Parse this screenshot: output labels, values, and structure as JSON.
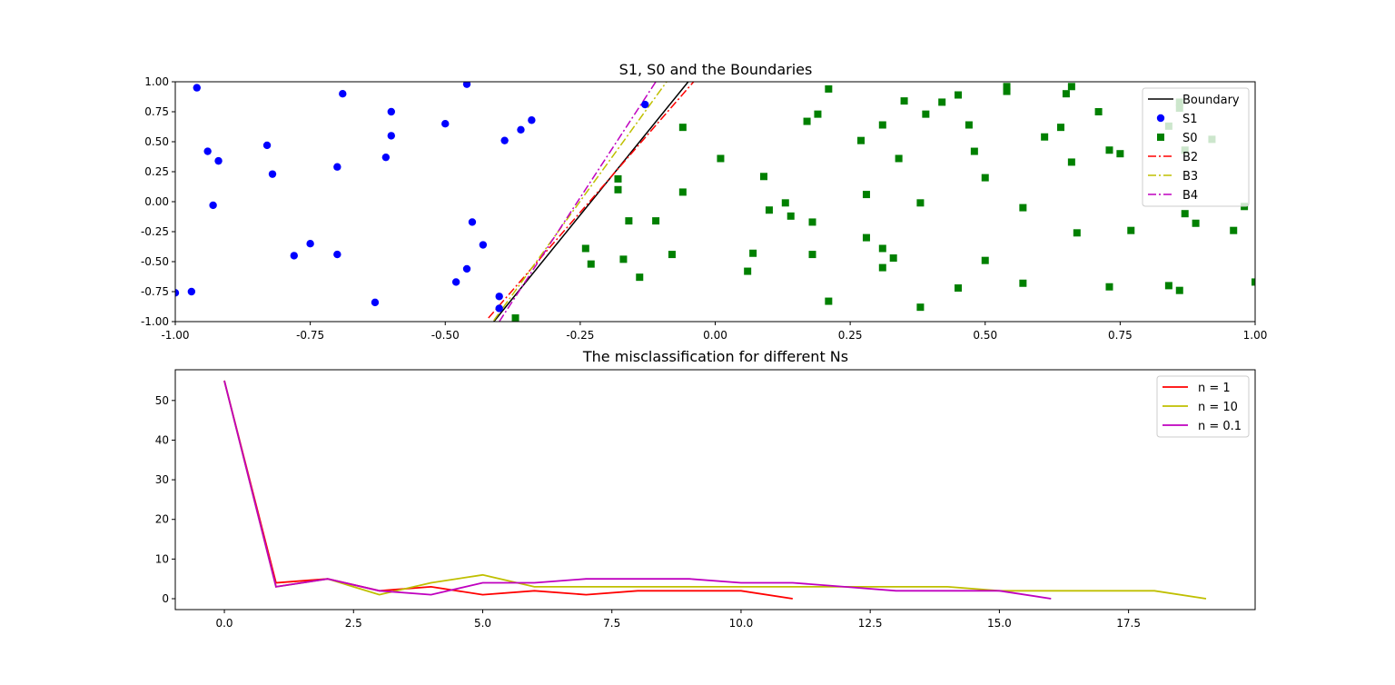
{
  "chart_data": [
    {
      "type": "scatter",
      "title": "S1, S0 and the Boundaries",
      "xlim": [
        -1.0,
        1.0
      ],
      "ylim": [
        -1.0,
        1.0
      ],
      "xticks": [
        "-1.00",
        "-0.75",
        "-0.50",
        "-0.25",
        "0.00",
        "0.25",
        "0.50",
        "0.75",
        "1.00"
      ],
      "yticks": [
        "-1.00",
        "-0.75",
        "-0.50",
        "-0.25",
        "0.00",
        "0.25",
        "0.50",
        "0.75",
        "1.00"
      ],
      "grid": false,
      "legend_position": "top-right",
      "scatter_series": [
        {
          "name": "S1",
          "color": "#0000ff",
          "marker": "circle",
          "points": [
            [
              -0.96,
              0.95
            ],
            [
              -0.69,
              0.9
            ],
            [
              -0.46,
              0.98
            ],
            [
              -0.13,
              0.81
            ],
            [
              -0.6,
              0.75
            ],
            [
              -0.34,
              0.68
            ],
            [
              -0.5,
              0.65
            ],
            [
              -0.36,
              0.6
            ],
            [
              -0.6,
              0.55
            ],
            [
              -0.39,
              0.51
            ],
            [
              -0.83,
              0.47
            ],
            [
              -0.94,
              0.42
            ],
            [
              -0.61,
              0.37
            ],
            [
              -0.92,
              0.34
            ],
            [
              -0.7,
              0.29
            ],
            [
              -0.82,
              0.23
            ],
            [
              -0.93,
              -0.03
            ],
            [
              -0.45,
              -0.17
            ],
            [
              -0.75,
              -0.35
            ],
            [
              -0.43,
              -0.36
            ],
            [
              -0.78,
              -0.45
            ],
            [
              -0.7,
              -0.44
            ],
            [
              -0.46,
              -0.56
            ],
            [
              -0.48,
              -0.67
            ],
            [
              -0.97,
              -0.75
            ],
            [
              -1.0,
              -0.76
            ],
            [
              -0.4,
              -0.79
            ],
            [
              -0.63,
              -0.84
            ],
            [
              -0.4,
              -0.89
            ]
          ]
        },
        {
          "name": "S0",
          "color": "#008000",
          "marker": "square",
          "points": [
            [
              0.21,
              0.94
            ],
            [
              0.54,
              0.96
            ],
            [
              0.66,
              0.96
            ],
            [
              0.54,
              0.92
            ],
            [
              0.45,
              0.89
            ],
            [
              0.65,
              0.9
            ],
            [
              0.35,
              0.84
            ],
            [
              0.42,
              0.83
            ],
            [
              0.86,
              0.83
            ],
            [
              0.86,
              0.78
            ],
            [
              0.19,
              0.73
            ],
            [
              0.39,
              0.73
            ],
            [
              0.71,
              0.75
            ],
            [
              0.17,
              0.67
            ],
            [
              0.31,
              0.64
            ],
            [
              0.47,
              0.64
            ],
            [
              0.84,
              0.63
            ],
            [
              -0.06,
              0.62
            ],
            [
              0.64,
              0.62
            ],
            [
              0.61,
              0.54
            ],
            [
              0.92,
              0.52
            ],
            [
              0.27,
              0.51
            ],
            [
              0.87,
              0.43
            ],
            [
              0.73,
              0.43
            ],
            [
              0.75,
              0.4
            ],
            [
              0.48,
              0.42
            ],
            [
              0.34,
              0.36
            ],
            [
              0.01,
              0.36
            ],
            [
              0.66,
              0.33
            ],
            [
              0.09,
              0.21
            ],
            [
              0.5,
              0.2
            ],
            [
              -0.18,
              0.19
            ],
            [
              -0.18,
              0.1
            ],
            [
              -0.06,
              0.08
            ],
            [
              0.28,
              0.06
            ],
            [
              0.13,
              -0.01
            ],
            [
              0.38,
              -0.01
            ],
            [
              0.98,
              -0.04
            ],
            [
              0.1,
              -0.07
            ],
            [
              0.57,
              -0.05
            ],
            [
              0.14,
              -0.12
            ],
            [
              0.87,
              -0.1
            ],
            [
              -0.16,
              -0.16
            ],
            [
              -0.11,
              -0.16
            ],
            [
              0.18,
              -0.17
            ],
            [
              0.89,
              -0.18
            ],
            [
              0.96,
              -0.24
            ],
            [
              0.77,
              -0.24
            ],
            [
              0.67,
              -0.26
            ],
            [
              0.28,
              -0.3
            ],
            [
              0.31,
              -0.39
            ],
            [
              -0.24,
              -0.39
            ],
            [
              0.07,
              -0.43
            ],
            [
              -0.08,
              -0.44
            ],
            [
              0.18,
              -0.44
            ],
            [
              0.33,
              -0.47
            ],
            [
              -0.17,
              -0.48
            ],
            [
              0.5,
              -0.49
            ],
            [
              -0.23,
              -0.52
            ],
            [
              0.31,
              -0.55
            ],
            [
              0.06,
              -0.58
            ],
            [
              -0.14,
              -0.63
            ],
            [
              0.57,
              -0.68
            ],
            [
              1.0,
              -0.67
            ],
            [
              0.84,
              -0.7
            ],
            [
              0.73,
              -0.71
            ],
            [
              0.45,
              -0.72
            ],
            [
              0.86,
              -0.74
            ],
            [
              0.21,
              -0.83
            ],
            [
              0.38,
              -0.88
            ],
            [
              -0.37,
              -0.97
            ]
          ]
        }
      ],
      "line_series": [
        {
          "name": "Boundary",
          "color": "#000000",
          "dash": "solid",
          "points": [
            [
              -0.41,
              -1.0
            ],
            [
              -0.05,
              1.0
            ]
          ]
        },
        {
          "name": "B2",
          "color": "#ff0000",
          "dash": "dashdot",
          "points": [
            [
              -0.42,
              -0.97
            ],
            [
              -0.04,
              1.0
            ]
          ]
        },
        {
          "name": "B3",
          "color": "#bfbf00",
          "dash": "dashdot",
          "points": [
            [
              -0.41,
              -0.99
            ],
            [
              -0.09,
              1.0
            ]
          ]
        },
        {
          "name": "B4",
          "color": "#bf00bf",
          "dash": "dashdot",
          "points": [
            [
              -0.4,
              -1.0
            ],
            [
              -0.11,
              1.0
            ]
          ]
        }
      ],
      "legend": [
        "Boundary",
        "S1",
        "S0",
        "B2",
        "B3",
        "B4"
      ]
    },
    {
      "type": "line",
      "title": "The misclassification for different Ns",
      "xlim": [
        -0.95,
        19.95
      ],
      "ylim": [
        -2.75,
        57.75
      ],
      "xticks": [
        "0.0",
        "2.5",
        "5.0",
        "7.5",
        "10.0",
        "12.5",
        "15.0",
        "17.5"
      ],
      "yticks": [
        "0",
        "10",
        "20",
        "30",
        "40",
        "50"
      ],
      "grid": false,
      "legend_position": "top-right",
      "series": [
        {
          "name": "n = 1",
          "color": "#ff0000",
          "x": [
            0,
            1,
            2,
            3,
            4,
            5,
            6,
            7,
            8,
            9,
            10,
            11
          ],
          "values": [
            55,
            4,
            5,
            2,
            3,
            1,
            2,
            1,
            2,
            2,
            2,
            0
          ]
        },
        {
          "name": "n = 10",
          "color": "#bfbf00",
          "x": [
            0,
            1,
            2,
            3,
            4,
            5,
            6,
            7,
            8,
            9,
            10,
            11,
            12,
            13,
            14,
            15,
            16,
            17,
            18,
            19
          ],
          "values": [
            55,
            3,
            5,
            1,
            4,
            6,
            3,
            3,
            3,
            3,
            3,
            3,
            3,
            3,
            3,
            2,
            2,
            2,
            2,
            0
          ]
        },
        {
          "name": "n = 0.1",
          "color": "#bf00bf",
          "x": [
            0,
            1,
            2,
            3,
            4,
            5,
            6,
            7,
            8,
            9,
            10,
            11,
            12,
            13,
            14,
            15,
            16
          ],
          "values": [
            55,
            3,
            5,
            2,
            1,
            4,
            4,
            5,
            5,
            5,
            4,
            4,
            3,
            2,
            2,
            2,
            0
          ]
        }
      ]
    }
  ]
}
